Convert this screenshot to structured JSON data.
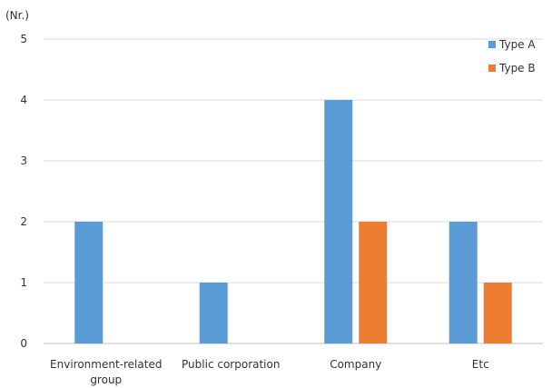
{
  "chart_data": {
    "type": "bar",
    "unit_label": "(Nr.)",
    "categories": [
      "Environment-related group",
      "Public corporation",
      "Company",
      "Etc"
    ],
    "category_lines": [
      [
        "Environment-related",
        "group"
      ],
      [
        "Public corporation"
      ],
      [
        "Company"
      ],
      [
        "Etc"
      ]
    ],
    "series": [
      {
        "name": "Type A",
        "values": [
          2,
          1,
          4,
          2
        ],
        "color": "#5b9bd5"
      },
      {
        "name": "Type B",
        "values": [
          0,
          0,
          2,
          1
        ],
        "color": "#ed7d31"
      }
    ],
    "ylim": [
      0,
      5
    ],
    "yticks": [
      "0",
      "1",
      "2",
      "3",
      "4",
      "5"
    ],
    "grid": true,
    "legend_position": "top-right"
  }
}
